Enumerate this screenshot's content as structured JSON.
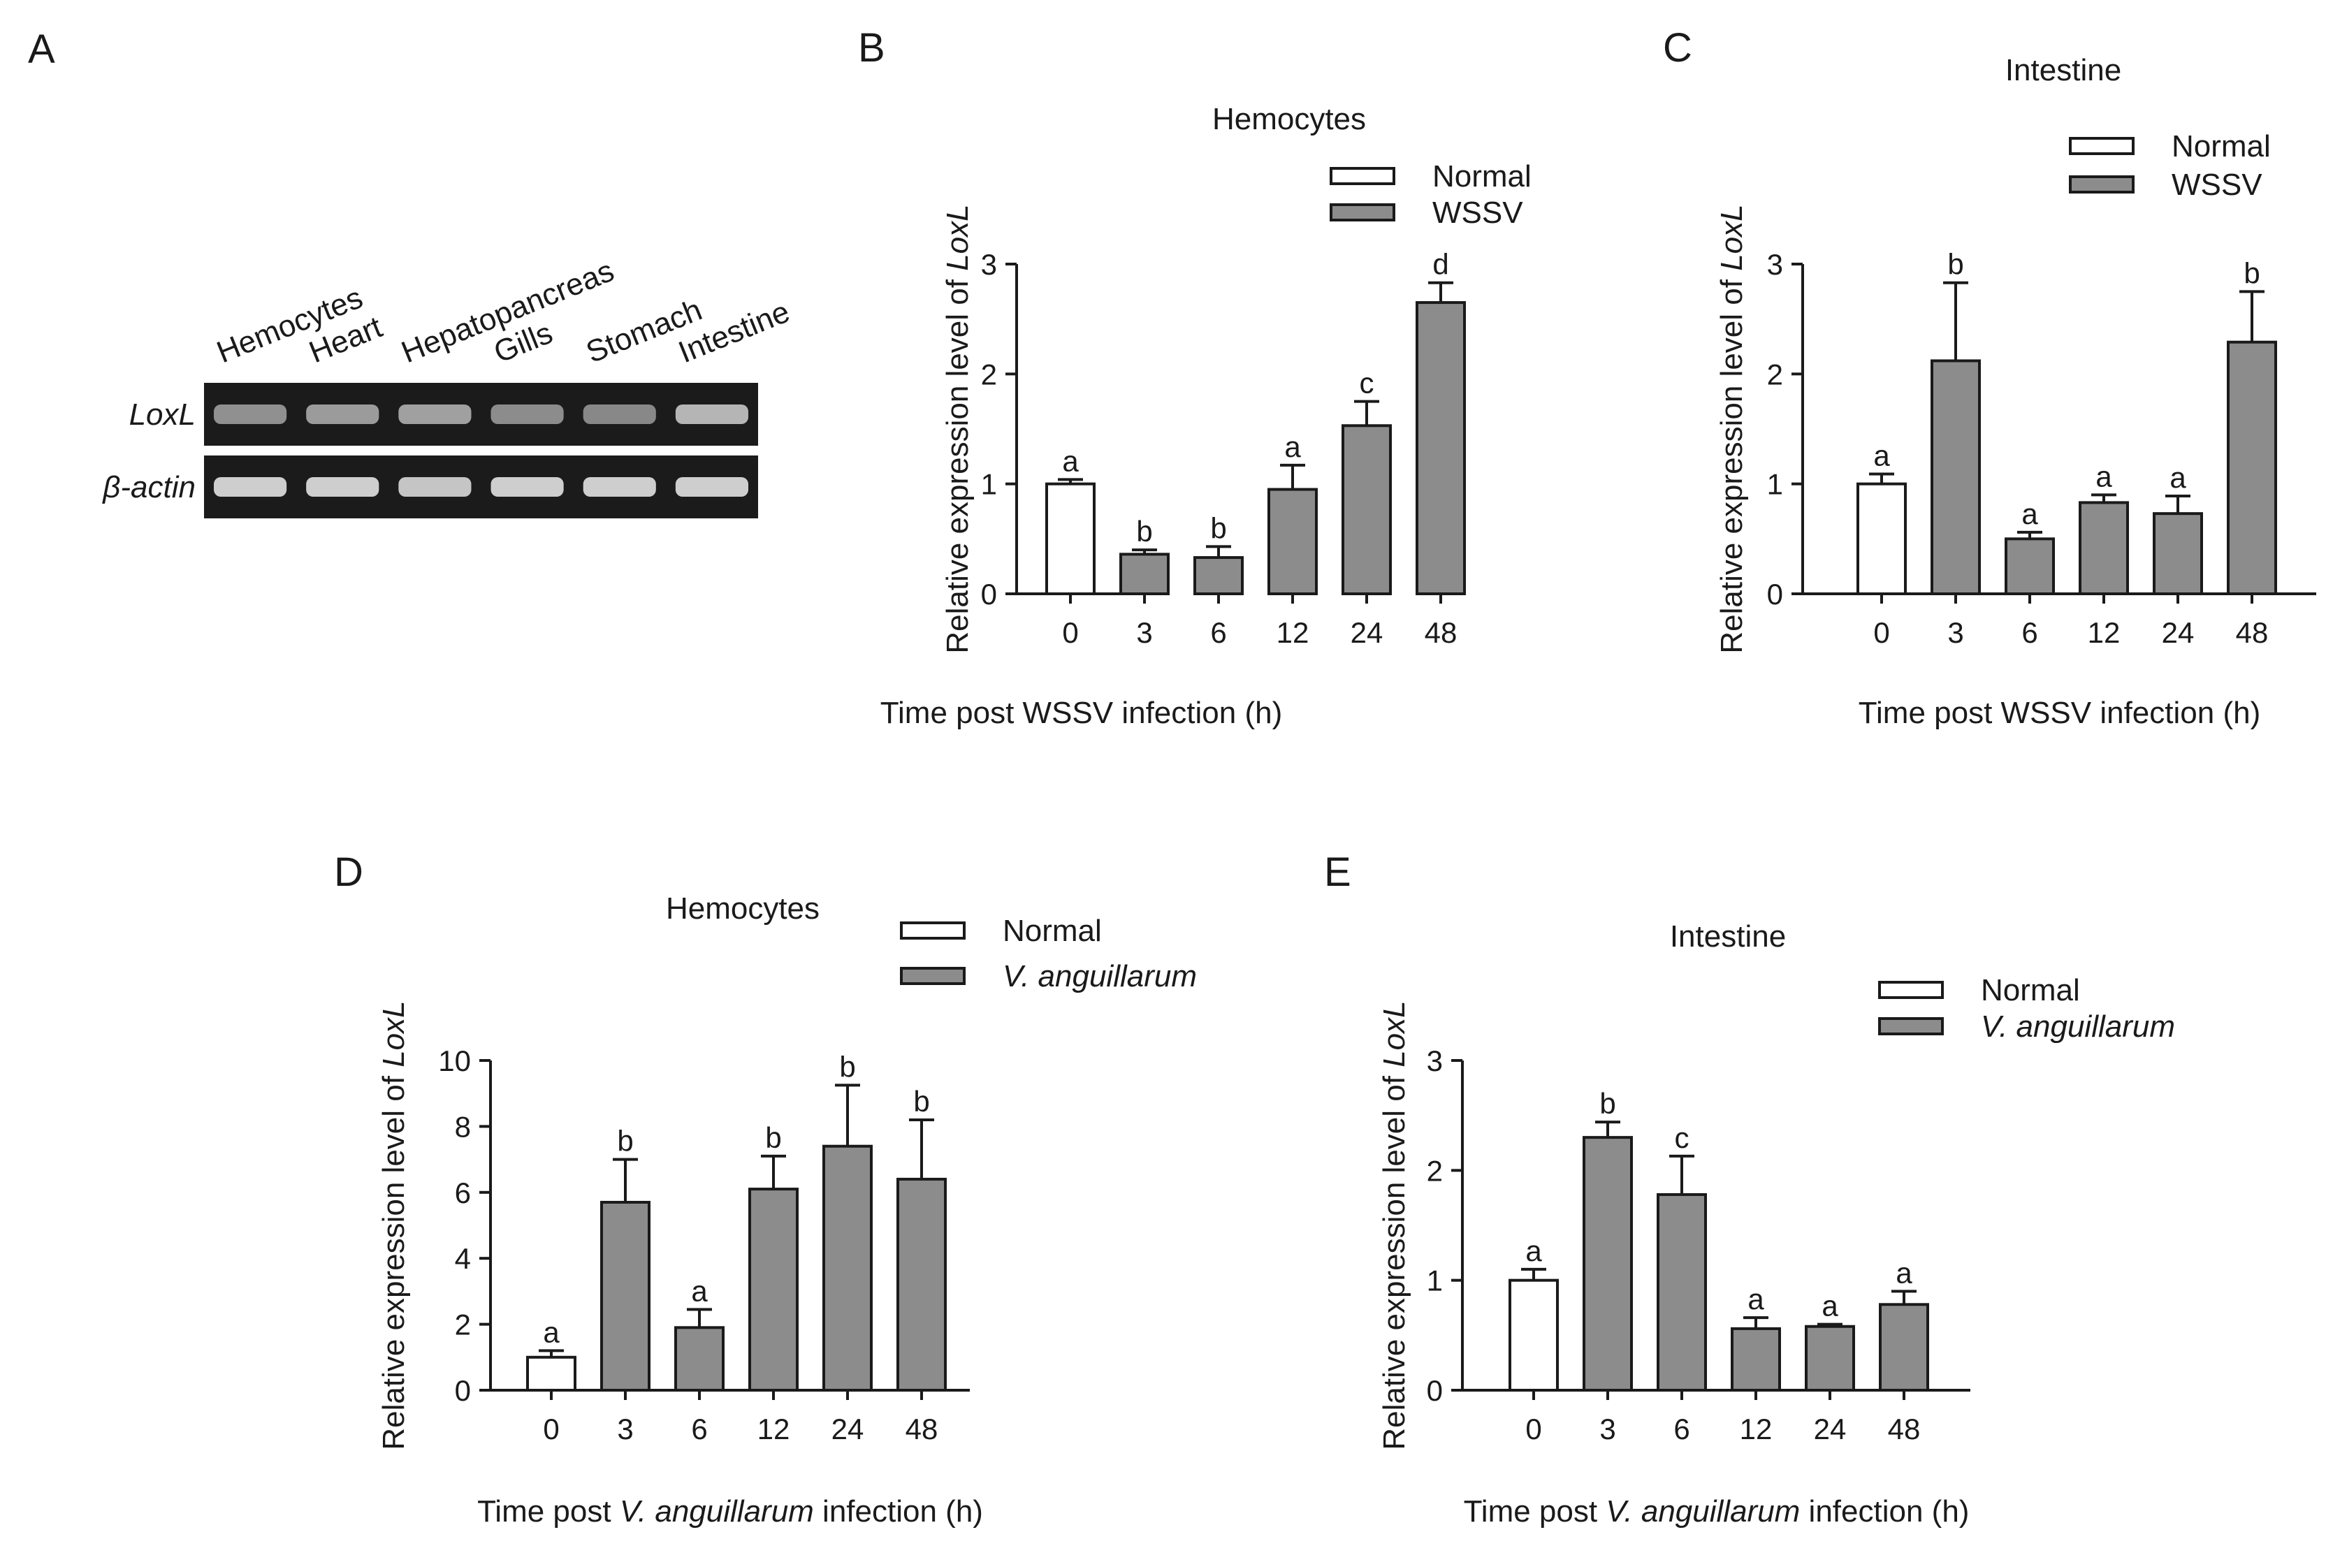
{
  "colors": {
    "normal_fill": "#ffffff",
    "infected_fill": "#8c8c8c",
    "axis": "#1a1a1a",
    "gel_background": "#1b1b1b",
    "gel_band": "#d8d8d8"
  },
  "panel_a": {
    "letter": "A",
    "lanes": [
      "Hemocytes",
      "Heart",
      "Hepatopancreas",
      "Gills",
      "Stomach",
      "Intestine"
    ],
    "rows": [
      {
        "label": "LoxL",
        "band_intensity": [
          0.62,
          0.68,
          0.7,
          0.6,
          0.58,
          0.82
        ]
      },
      {
        "label": "β-actin",
        "band_intensity": [
          0.95,
          0.95,
          0.9,
          0.95,
          0.95,
          0.95
        ]
      }
    ]
  },
  "chart_data": [
    {
      "id": "B",
      "letter": "B",
      "type": "bar",
      "title": "Hemocytes",
      "ylabel_prefix": "Relative expression level of ",
      "ylabel_gene": "LoxL",
      "xlabel_parts": [
        {
          "text": "Time post WSSV infection (h)",
          "italic": false
        }
      ],
      "categories": [
        "0",
        "3",
        "6",
        "12",
        "24",
        "48"
      ],
      "values": [
        1.0,
        0.36,
        0.33,
        0.95,
        1.53,
        2.65
      ],
      "errors": [
        0.04,
        0.04,
        0.1,
        0.22,
        0.22,
        0.18
      ],
      "significance": [
        "a",
        "b",
        "b",
        "a",
        "c",
        "d"
      ],
      "groups": [
        "normal",
        "infected",
        "infected",
        "infected",
        "infected",
        "infected"
      ],
      "ylim": [
        0,
        3
      ],
      "yticks": [
        0,
        1,
        2,
        3
      ],
      "legend": {
        "normal": "Normal",
        "infected": "WSSV",
        "infected_italic": false
      }
    },
    {
      "id": "C",
      "letter": "C",
      "type": "bar",
      "title": "Intestine",
      "ylabel_prefix": "Relative expression level of ",
      "ylabel_gene": "LoxL",
      "xlabel_parts": [
        {
          "text": "Time post WSSV infection (h)",
          "italic": false
        }
      ],
      "categories": [
        "0",
        "3",
        "6",
        "12",
        "24",
        "48"
      ],
      "values": [
        1.0,
        2.12,
        0.5,
        0.83,
        0.73,
        2.29
      ],
      "errors": [
        0.09,
        0.71,
        0.06,
        0.07,
        0.16,
        0.46
      ],
      "significance": [
        "a",
        "b",
        "a",
        "a",
        "a",
        "b"
      ],
      "groups": [
        "normal",
        "infected",
        "infected",
        "infected",
        "infected",
        "infected"
      ],
      "ylim": [
        0,
        3
      ],
      "yticks": [
        0,
        1,
        2,
        3
      ],
      "legend": {
        "normal": "Normal",
        "infected": "WSSV",
        "infected_italic": false
      }
    },
    {
      "id": "D",
      "letter": "D",
      "type": "bar",
      "title": "Hemocytes",
      "ylabel_prefix": "Relative expression level of ",
      "ylabel_gene": "LoxL",
      "xlabel_parts": [
        {
          "text": "Time post ",
          "italic": false
        },
        {
          "text": "V. anguillarum",
          "italic": true
        },
        {
          "text": " infection (h)",
          "italic": false
        }
      ],
      "categories": [
        "0",
        "3",
        "6",
        "12",
        "24",
        "48"
      ],
      "values": [
        1.0,
        5.7,
        1.9,
        6.1,
        7.4,
        6.4
      ],
      "errors": [
        0.2,
        1.3,
        0.55,
        1.0,
        1.85,
        1.8
      ],
      "significance": [
        "a",
        "b",
        "a",
        "b",
        "b",
        "b"
      ],
      "groups": [
        "normal",
        "infected",
        "infected",
        "infected",
        "infected",
        "infected"
      ],
      "ylim": [
        0,
        10
      ],
      "yticks": [
        0,
        2,
        4,
        6,
        8,
        10
      ],
      "legend": {
        "normal": "Normal",
        "infected": "V. anguillarum",
        "infected_italic": true
      }
    },
    {
      "id": "E",
      "letter": "E",
      "type": "bar",
      "title": "Intestine",
      "ylabel_prefix": "Relative expression level of ",
      "ylabel_gene": "LoxL",
      "xlabel_parts": [
        {
          "text": "Time post ",
          "italic": false
        },
        {
          "text": "V. anguillarum",
          "italic": true
        },
        {
          "text": " infection (h)",
          "italic": false
        }
      ],
      "categories": [
        "0",
        "3",
        "6",
        "12",
        "24",
        "48"
      ],
      "values": [
        1.0,
        2.3,
        1.78,
        0.56,
        0.58,
        0.78
      ],
      "errors": [
        0.1,
        0.14,
        0.35,
        0.1,
        0.02,
        0.12
      ],
      "significance": [
        "a",
        "b",
        "c",
        "a",
        "a",
        "a"
      ],
      "groups": [
        "normal",
        "infected",
        "infected",
        "infected",
        "infected",
        "infected"
      ],
      "ylim": [
        0,
        3
      ],
      "yticks": [
        0,
        1,
        2,
        3
      ],
      "legend": {
        "normal": "Normal",
        "infected": "V. anguillarum",
        "infected_italic": true
      }
    }
  ]
}
